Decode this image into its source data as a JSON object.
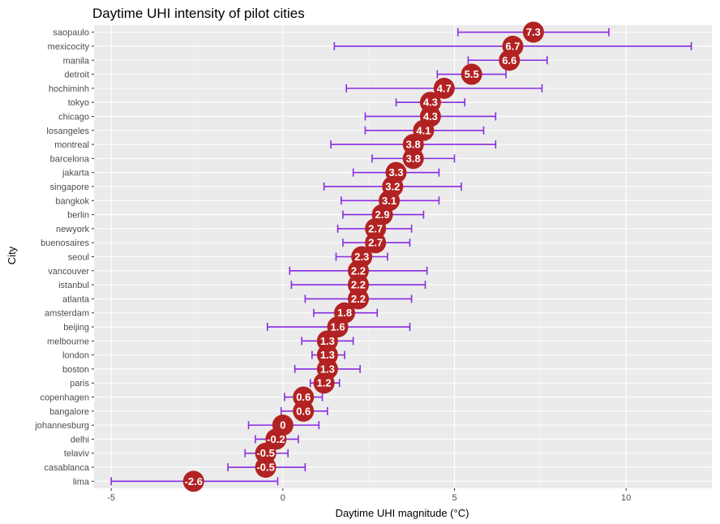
{
  "chart_data": {
    "type": "scatter",
    "title": "Daytime UHI intensity of pilot cities",
    "xlabel": "Daytime UHI magnitude (°C)",
    "ylabel": "City",
    "xlim": [
      -5.5,
      12.5
    ],
    "xticks": [
      -5,
      0,
      5,
      10
    ],
    "grid": true,
    "colors": {
      "panel": "#ebebeb",
      "grid_major": "#ffffff",
      "grid_minor": "#f5f5f5",
      "point": "#b22222",
      "errorbar": "#8a2be2",
      "label": "#ffffff"
    },
    "points": [
      {
        "city": "saopaulo",
        "value": 7.3,
        "label": "7.3",
        "lo": 5.1,
        "hi": 9.5
      },
      {
        "city": "mexicocity",
        "value": 6.7,
        "label": "6.7",
        "lo": 1.5,
        "hi": 11.9
      },
      {
        "city": "manila",
        "value": 6.6,
        "label": "6.6",
        "lo": 5.4,
        "hi": 7.7
      },
      {
        "city": "detroit",
        "value": 5.5,
        "label": "5.5",
        "lo": 4.5,
        "hi": 6.5
      },
      {
        "city": "hochiminh",
        "value": 4.7,
        "label": "4.7",
        "lo": 1.85,
        "hi": 7.55
      },
      {
        "city": "tokyo",
        "value": 4.3,
        "label": "4.3",
        "lo": 3.3,
        "hi": 5.3
      },
      {
        "city": "chicago",
        "value": 4.3,
        "label": "4.3",
        "lo": 2.4,
        "hi": 6.2
      },
      {
        "city": "losangeles",
        "value": 4.1,
        "label": "4.1",
        "lo": 2.4,
        "hi": 5.85
      },
      {
        "city": "montreal",
        "value": 3.8,
        "label": "3.8",
        "lo": 1.4,
        "hi": 6.2
      },
      {
        "city": "barcelona",
        "value": 3.8,
        "label": "3.8",
        "lo": 2.6,
        "hi": 5.0
      },
      {
        "city": "jakarta",
        "value": 3.3,
        "label": "3.3",
        "lo": 2.05,
        "hi": 4.55
      },
      {
        "city": "singapore",
        "value": 3.2,
        "label": "3.2",
        "lo": 1.2,
        "hi": 5.2
      },
      {
        "city": "bangkok",
        "value": 3.1,
        "label": "3.1",
        "lo": 1.7,
        "hi": 4.55
      },
      {
        "city": "berlin",
        "value": 2.9,
        "label": "2.9",
        "lo": 1.75,
        "hi": 4.1
      },
      {
        "city": "newyork",
        "value": 2.7,
        "label": "2.7",
        "lo": 1.6,
        "hi": 3.75
      },
      {
        "city": "buenosaires",
        "value": 2.7,
        "label": "2.7",
        "lo": 1.75,
        "hi": 3.7
      },
      {
        "city": "seoul",
        "value": 2.3,
        "label": "2.3",
        "lo": 1.55,
        "hi": 3.05
      },
      {
        "city": "vancouver",
        "value": 2.2,
        "label": "2.2",
        "lo": 0.2,
        "hi": 4.2
      },
      {
        "city": "istanbul",
        "value": 2.2,
        "label": "2.2",
        "lo": 0.25,
        "hi": 4.15
      },
      {
        "city": "atlanta",
        "value": 2.2,
        "label": "2.2",
        "lo": 0.65,
        "hi": 3.75
      },
      {
        "city": "amsterdam",
        "value": 1.8,
        "label": "1.8",
        "lo": 0.9,
        "hi": 2.75
      },
      {
        "city": "beijing",
        "value": 1.6,
        "label": "1.6",
        "lo": -0.45,
        "hi": 3.7
      },
      {
        "city": "melbourne",
        "value": 1.3,
        "label": "1.3",
        "lo": 0.55,
        "hi": 2.05
      },
      {
        "city": "london",
        "value": 1.3,
        "label": "1.3",
        "lo": 0.85,
        "hi": 1.8
      },
      {
        "city": "boston",
        "value": 1.3,
        "label": "1.3",
        "lo": 0.35,
        "hi": 2.25
      },
      {
        "city": "paris",
        "value": 1.2,
        "label": "1.2",
        "lo": 0.8,
        "hi": 1.65
      },
      {
        "city": "copenhagen",
        "value": 0.6,
        "label": "0.6",
        "lo": 0.05,
        "hi": 1.15
      },
      {
        "city": "bangalore",
        "value": 0.6,
        "label": "0.6",
        "lo": -0.05,
        "hi": 1.3
      },
      {
        "city": "johannesburg",
        "value": 0.0,
        "label": "0",
        "lo": -1.0,
        "hi": 1.05
      },
      {
        "city": "delhi",
        "value": -0.2,
        "label": "-0.2",
        "lo": -0.8,
        "hi": 0.45
      },
      {
        "city": "telaviv",
        "value": -0.5,
        "label": "-0.5",
        "lo": -1.1,
        "hi": 0.15
      },
      {
        "city": "casablanca",
        "value": -0.5,
        "label": "-0.5",
        "lo": -1.6,
        "hi": 0.65
      },
      {
        "city": "lima",
        "value": -2.6,
        "label": "-2.6",
        "lo": -5.0,
        "hi": -0.15
      }
    ]
  }
}
